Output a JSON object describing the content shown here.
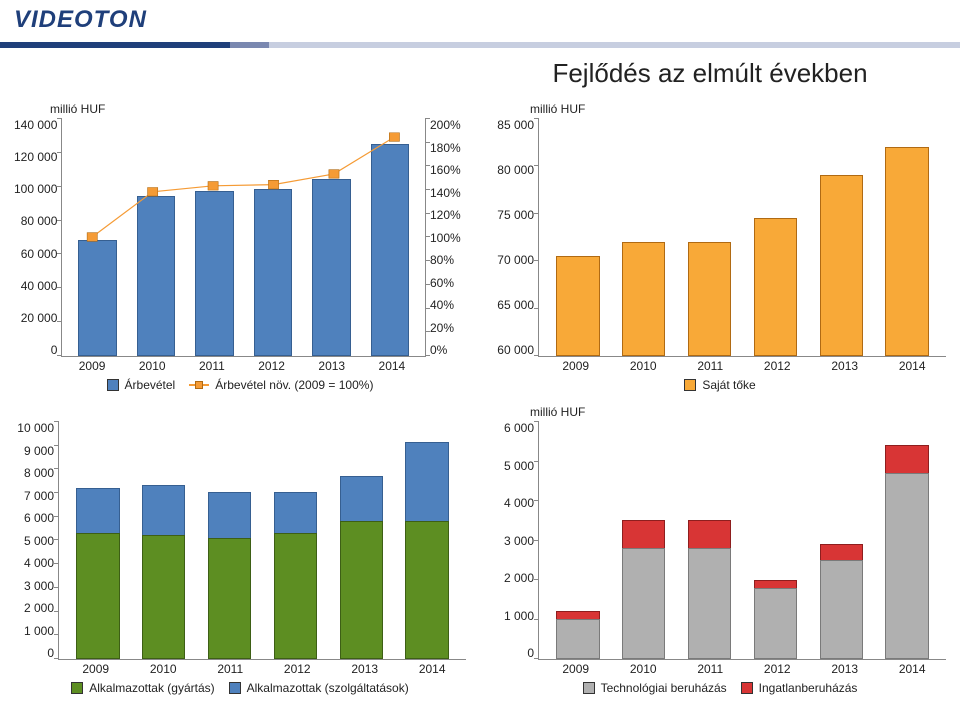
{
  "brand": {
    "logo_text": "VIDEOTON",
    "logo_color": "#1f3f7a"
  },
  "header_line": {
    "dark": "#1f3f7a",
    "mid": "#7a88b0",
    "light": "#c7cee0",
    "widths_pct": [
      24,
      4,
      72
    ]
  },
  "page_title": "Fejlődés az elmúlt években",
  "title_fontsize": 26,
  "years": [
    "2009",
    "2010",
    "2011",
    "2012",
    "2013",
    "2014"
  ],
  "chart_revenue": {
    "type": "bar+line",
    "unit_label": "millió HUF",
    "left_axis": {
      "min": 0,
      "max": 140000,
      "step": 20000,
      "labels": [
        "140 000",
        "120 000",
        "100 000",
        "80 000",
        "60 000",
        "40 000",
        "20 000",
        "0"
      ]
    },
    "right_axis": {
      "min": 0,
      "max": 200,
      "step": 20,
      "labels": [
        "200%",
        "180%",
        "160%",
        "140%",
        "120%",
        "100%",
        "80%",
        "60%",
        "40%",
        "20%",
        "0%"
      ]
    },
    "categories": [
      "2009",
      "2010",
      "2011",
      "2012",
      "2013",
      "2014"
    ],
    "bar_values": [
      68000,
      94000,
      97000,
      98000,
      104000,
      125000
    ],
    "bar_color": "#4f81bd",
    "bar_border": "#365f91",
    "line_values_pct": [
      100,
      138,
      143,
      144,
      153,
      184
    ],
    "line_color": "#f59b35",
    "marker_border": "#b06a13",
    "legend": {
      "bar": "Árbevétel",
      "line": "Árbevétel növ. (2009 = 100%)"
    },
    "font_size": 12
  },
  "chart_equity": {
    "type": "bar",
    "unit_label": "millió HUF",
    "y_axis": {
      "min": 60000,
      "max": 85000,
      "step": 5000,
      "labels": [
        "85 000",
        "80 000",
        "75 000",
        "70 000",
        "65 000",
        "60 000"
      ]
    },
    "categories": [
      "2009",
      "2010",
      "2011",
      "2012",
      "2013",
      "2014"
    ],
    "values": [
      70500,
      72000,
      72000,
      74500,
      79000,
      82000
    ],
    "bar_color": "#f8a938",
    "bar_border": "#b06a13",
    "legend_label": "Saját tőke",
    "font_size": 12
  },
  "chart_employees": {
    "type": "stacked-bar",
    "y_axis": {
      "min": 0,
      "max": 10000,
      "step": 1000,
      "labels": [
        "10 000",
        "9 000",
        "8 000",
        "7 000",
        "6 000",
        "5 000",
        "4 000",
        "3 000",
        "2 000",
        "1 000",
        "0"
      ]
    },
    "categories": [
      "2009",
      "2010",
      "2011",
      "2012",
      "2013",
      "2014"
    ],
    "series_bottom": {
      "label": "Alkalmazottak (gyártás)",
      "values": [
        5300,
        5200,
        5100,
        5300,
        5800,
        5800
      ],
      "color": "#5d8e22",
      "border": "#3d5f15"
    },
    "series_top": {
      "label": "Alkalmazottak (szolgáltatások)",
      "values": [
        1900,
        2100,
        1900,
        1700,
        1900,
        3300
      ],
      "color": "#4f81bd",
      "border": "#365f91"
    },
    "font_size": 12
  },
  "chart_investment": {
    "type": "stacked-bar",
    "unit_label": "millió HUF",
    "y_axis": {
      "min": 0,
      "max": 6000,
      "step": 1000,
      "labels": [
        "6 000",
        "5 000",
        "4 000",
        "3 000",
        "2 000",
        "1 000",
        "0"
      ]
    },
    "categories": [
      "2009",
      "2010",
      "2011",
      "2012",
      "2013",
      "2014"
    ],
    "series_bottom": {
      "label": "Technológiai beruházás",
      "values": [
        1000,
        2800,
        2800,
        1800,
        2500,
        4700
      ],
      "color": "#b0b0b0",
      "border": "#7a7a7a"
    },
    "series_top": {
      "label": "Ingatlanberuházás",
      "values": [
        200,
        700,
        700,
        200,
        400,
        700
      ],
      "color": "#d83535",
      "border": "#8e1e1e"
    },
    "font_size": 12
  },
  "global": {
    "background": "#ffffff",
    "text_color": "#222222",
    "axis_color": "#888888"
  }
}
